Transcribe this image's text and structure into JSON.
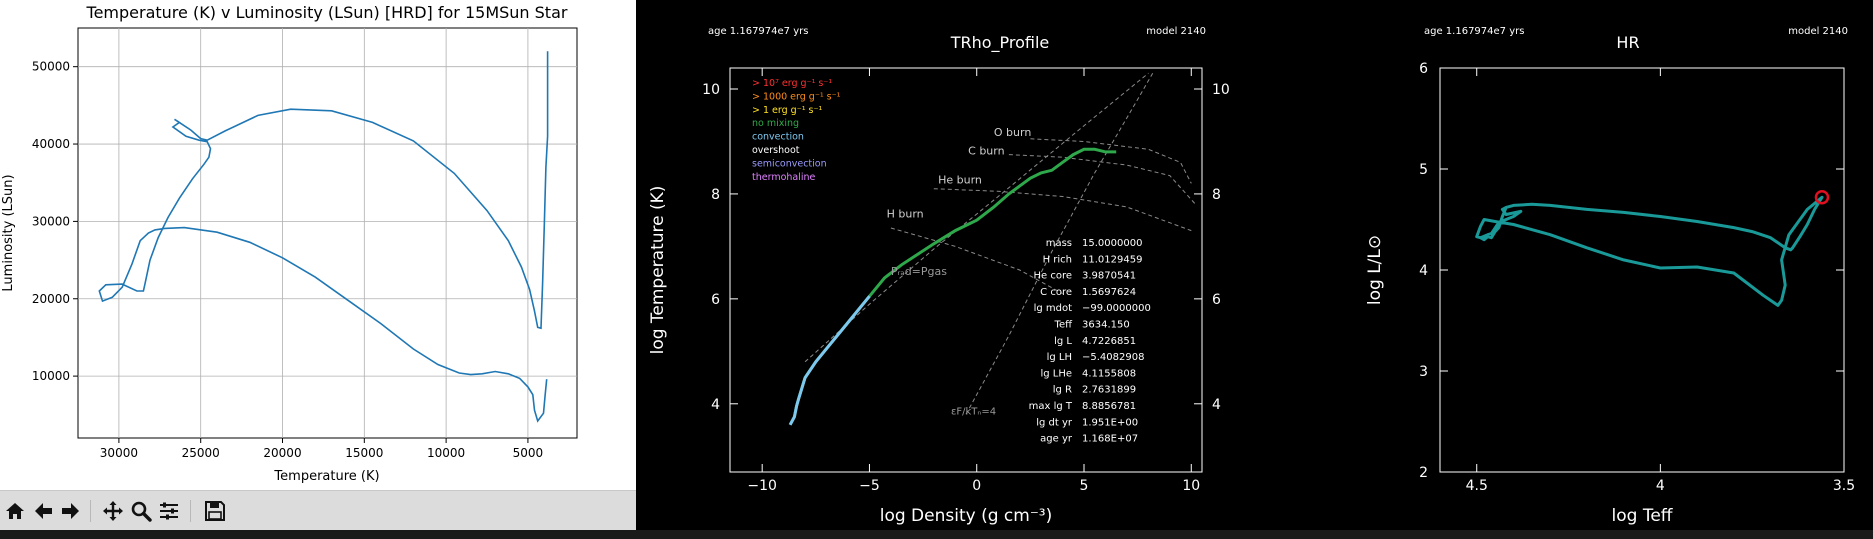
{
  "matplotlib_window": {
    "chart_data": {
      "type": "line",
      "title": "Temperature (K) v Luminosity (LSun) [HRD] for 15MSun Star",
      "xlabel": "Temperature (K)",
      "ylabel": "Luminosity (LSun)",
      "xlim": [
        32500,
        2000
      ],
      "ylim": [
        2000,
        55000
      ],
      "x_ticks": [
        30000,
        25000,
        20000,
        15000,
        10000,
        5000
      ],
      "y_ticks": [
        10000,
        20000,
        30000,
        40000,
        50000
      ],
      "x_tick_labels": [
        "30000",
        "25000",
        "20000",
        "15000",
        "10000",
        "5000"
      ],
      "y_tick_labels": [
        "10000",
        "20000",
        "30000",
        "40000",
        "50000"
      ],
      "grid": true,
      "line_color": "#1f77b4",
      "series": [
        {
          "x": [
            3850,
            3950,
            4050,
            4400,
            4600,
            4700,
            5000,
            5500,
            6200,
            7000,
            7800,
            8500,
            9200,
            10500,
            12000,
            14000,
            16000,
            18000,
            20000,
            22000,
            24000,
            26000,
            27200,
            27800,
            28200,
            28700,
            29200,
            29800,
            30400,
            31000,
            31200,
            30800,
            29800,
            28900,
            28500,
            28400,
            28100,
            27600,
            27000,
            26300,
            25500,
            24800,
            24500,
            24400,
            24600,
            25100,
            25900,
            26700,
            26300,
            26600,
            25600,
            25000,
            24600,
            23500,
            21500,
            19500,
            17000,
            14500,
            12000,
            9500,
            7500,
            6200,
            5400,
            4900,
            4600,
            4400,
            4200,
            4100,
            4000,
            3900,
            3800,
            3800
          ],
          "y": [
            9600,
            7500,
            5200,
            4200,
            5600,
            7600,
            8600,
            9700,
            10300,
            10600,
            10300,
            10200,
            10400,
            11500,
            13500,
            16800,
            19800,
            22800,
            25300,
            27300,
            28600,
            29200,
            29100,
            28900,
            28500,
            27500,
            24500,
            21500,
            20200,
            19700,
            21000,
            21800,
            21900,
            21000,
            21000,
            22000,
            25000,
            27900,
            30500,
            33000,
            35500,
            37400,
            38300,
            39400,
            40300,
            40500,
            41000,
            42200,
            42800,
            43200,
            41800,
            40700,
            40500,
            41700,
            43700,
            44500,
            44300,
            42800,
            40400,
            36200,
            31400,
            27500,
            24100,
            21200,
            18400,
            16300,
            16200,
            22000,
            29500,
            37000,
            41000,
            52000
          ]
        }
      ]
    },
    "toolbar": {
      "buttons": [
        {
          "icon": "home-icon",
          "label": "Home"
        },
        {
          "icon": "arrow-left-icon",
          "label": "Back"
        },
        {
          "icon": "arrow-right-icon",
          "label": "Forward"
        },
        {
          "icon": "move-icon",
          "label": "Pan"
        },
        {
          "icon": "magnifier-icon",
          "label": "Zoom"
        },
        {
          "icon": "sliders-icon",
          "label": "Subplots"
        },
        {
          "icon": "floppy-disk-icon",
          "label": "Save"
        }
      ]
    }
  },
  "trho_panel": {
    "chart_data": {
      "type": "line",
      "title": "TRho_Profile",
      "xlabel": "log Density (g cm⁻³)",
      "ylabel": "log Temperature (K)",
      "xlim": [
        -11.5,
        10.5
      ],
      "ylim": [
        2.7,
        10.4
      ],
      "x_ticks": [
        -10,
        -5,
        0,
        5,
        10
      ],
      "x_tick_labels": [
        "−10",
        "−5",
        "0",
        "5",
        "10"
      ],
      "y_ticks": [
        4,
        6,
        8,
        10
      ],
      "y_tick_labels": [
        "4",
        "6",
        "8",
        "10"
      ],
      "series": [
        {
          "name": "profile",
          "x": [
            -8.7,
            -8.5,
            -8.4,
            -8.3,
            -8.0,
            -7.5,
            -7.0,
            -6.0,
            -5.0,
            -4.3,
            -3.5,
            -2.0,
            -1.0,
            0.0,
            0.8,
            1.5,
            2.0,
            2.5,
            3.0,
            3.5,
            4.0,
            4.5,
            5.0,
            5.5,
            6.0,
            6.5
          ],
          "y": [
            3.6,
            3.75,
            3.95,
            4.1,
            4.5,
            4.8,
            5.05,
            5.55,
            6.05,
            6.4,
            6.65,
            7.05,
            7.3,
            7.5,
            7.75,
            8.0,
            8.15,
            8.3,
            8.4,
            8.45,
            8.6,
            8.75,
            8.85,
            8.85,
            8.8,
            8.8
          ]
        }
      ],
      "header_left": "age 1.167974e7 yrs",
      "header_right": "model 2140",
      "legend": [
        {
          "text": "> 10⁷ erg g⁻¹ s⁻¹",
          "color": "#ff3030"
        },
        {
          "text": "> 1000 erg g⁻¹ s⁻¹",
          "color": "#ff8c1a"
        },
        {
          "text": "> 1 erg g⁻¹ s⁻¹",
          "color": "#ffe020"
        },
        {
          "text": "no mixing",
          "color": "#2ea84a"
        },
        {
          "text": "convection",
          "color": "#7ec8f0"
        },
        {
          "text": "overshoot",
          "color": "#ffffff"
        },
        {
          "text": "semiconvection",
          "color": "#9a9aff"
        },
        {
          "text": "thermohaline",
          "color": "#e080ff"
        }
      ],
      "burn_labels": [
        "O burn",
        "C burn",
        "He burn",
        "H burn"
      ],
      "annotations": [
        "Pᵣₐd=Pgas",
        "εF/kTₙ=4"
      ],
      "info": [
        {
          "label": "mass",
          "value": "15.0000000"
        },
        {
          "label": "H rich",
          "value": "11.0129459"
        },
        {
          "label": "He core",
          "value": "3.9870541"
        },
        {
          "label": "C core",
          "value": "1.5697624"
        },
        {
          "label": "lg mdot",
          "value": "−99.0000000"
        },
        {
          "label": "Teff",
          "value": "3634.150"
        },
        {
          "label": "lg L",
          "value": "4.7226851"
        },
        {
          "label": "lg LH",
          "value": "−5.4082908"
        },
        {
          "label": "lg LHe",
          "value": "4.1155808"
        },
        {
          "label": "lg R",
          "value": "2.7631899"
        },
        {
          "label": "max lg T",
          "value": "8.8856781"
        },
        {
          "label": "lg dt yr",
          "value": "1.951E+00"
        },
        {
          "label": "age yr",
          "value": "1.168E+07"
        }
      ]
    }
  },
  "hr_panel": {
    "chart_data": {
      "type": "line",
      "title": "HR",
      "xlabel": "log Teff",
      "ylabel": "log L/L⊙",
      "xlim": [
        4.6,
        3.5
      ],
      "ylim": [
        2,
        6
      ],
      "x_ticks": [
        4.5,
        4.0,
        3.5
      ],
      "x_tick_labels": [
        "4.5",
        "4",
        "3.5"
      ],
      "y_ticks": [
        2,
        3,
        4,
        5,
        6
      ],
      "y_tick_labels": [
        "2",
        "3",
        "4",
        "5",
        "6"
      ],
      "line_color": "#1a9999",
      "marker_color": "#e01020",
      "header_left": "age 1.167974e7 yrs",
      "header_right": "model 2140",
      "series": [
        {
          "x": [
            4.49,
            4.48,
            4.47,
            4.46,
            4.45,
            4.44,
            4.43,
            4.42,
            4.4,
            4.35,
            4.3,
            4.25,
            4.2,
            4.1,
            4.0,
            3.9,
            3.8,
            3.75,
            3.7,
            3.68,
            3.66,
            3.645,
            3.64,
            3.62,
            3.6,
            3.58,
            3.56,
            3.6,
            3.65,
            3.67,
            3.66,
            3.67,
            3.68,
            3.72,
            3.8,
            3.9,
            4.0,
            4.1,
            4.2,
            4.3,
            4.4,
            4.45,
            4.48,
            4.49,
            4.5,
            4.49,
            4.47,
            4.46,
            4.44,
            4.42,
            4.4,
            4.38,
            4.42,
            4.43,
            4.42
          ],
          "y": [
            4.32,
            4.3,
            4.33,
            4.32,
            4.38,
            4.42,
            4.53,
            4.62,
            4.64,
            4.65,
            4.64,
            4.62,
            4.6,
            4.57,
            4.53,
            4.48,
            4.42,
            4.38,
            4.32,
            4.27,
            4.22,
            4.2,
            4.22,
            4.33,
            4.45,
            4.6,
            4.72,
            4.6,
            4.35,
            4.1,
            3.85,
            3.7,
            3.65,
            3.75,
            3.97,
            4.03,
            4.02,
            4.1,
            4.22,
            4.35,
            4.45,
            4.48,
            4.5,
            4.43,
            4.33,
            4.32,
            4.35,
            4.36,
            4.47,
            4.5,
            4.53,
            4.58,
            4.55,
            4.6,
            4.62
          ]
        }
      ],
      "current_point": {
        "x": 3.56,
        "y": 4.72
      }
    }
  }
}
